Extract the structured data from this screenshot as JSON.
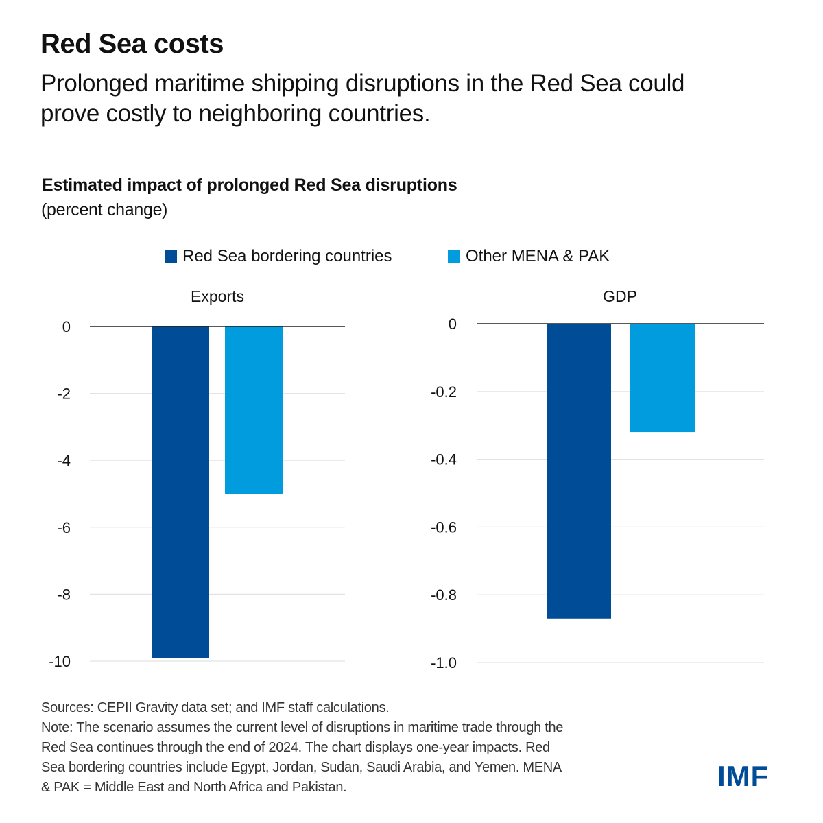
{
  "header": {
    "title": "Red Sea costs",
    "subtitle_line1": "Prolonged maritime shipping disruptions in the Red Sea could",
    "subtitle_line2": "prove costly to neighboring countries."
  },
  "colors": {
    "series_dark": "#004c97",
    "series_light": "#009cde",
    "gridline": "#e3e3e3",
    "zero_line": "#222222"
  },
  "chart_data": [
    {
      "type": "bar",
      "title": "Estimated impact of prolonged Red Sea disruptions",
      "ylabel": "(percent change)",
      "panel": "Exports",
      "categories": [
        "Exports"
      ],
      "series": [
        {
          "name": "Red Sea bordering countries",
          "values": [
            -9.9
          ]
        },
        {
          "name": "Other MENA & PAK",
          "values": [
            -5.0
          ]
        }
      ],
      "ylim": [
        -10,
        0
      ],
      "yticks": [
        0,
        -2,
        -4,
        -6,
        -8,
        -10
      ],
      "ytick_labels": [
        "0",
        "-2",
        "-4",
        "-6",
        "-8",
        "-10"
      ],
      "grid": true,
      "legend": "top-center"
    },
    {
      "type": "bar",
      "title": "Estimated impact of prolonged Red Sea disruptions",
      "ylabel": "(percent change)",
      "panel": "GDP",
      "categories": [
        "GDP"
      ],
      "series": [
        {
          "name": "Red Sea bordering countries",
          "values": [
            -0.87
          ]
        },
        {
          "name": "Other MENA & PAK",
          "values": [
            -0.32
          ]
        }
      ],
      "ylim": [
        -1.0,
        0
      ],
      "yticks": [
        0,
        -0.2,
        -0.4,
        -0.6,
        -0.8,
        -1.0
      ],
      "ytick_labels": [
        "0",
        "-0.2",
        "-0.4",
        "-0.6",
        "-0.8",
        "-1.0"
      ],
      "grid": true,
      "legend": "top-center"
    }
  ],
  "chart": {
    "title": "Estimated impact of prolonged Red Sea disruptions",
    "unit": "(percent change)",
    "legend": [
      {
        "label": "Red Sea bordering countries"
      },
      {
        "label": "Other MENA & PAK"
      }
    ]
  },
  "footnote": {
    "sources": "Sources: CEPII Gravity data set; and IMF staff calculations.",
    "note_lines": [
      "Note: The scenario assumes the current level of disruptions in maritime trade through the",
      "Red Sea continues through the end of 2024. The chart displays one-year impacts. Red",
      "Sea bordering countries include Egypt, Jordan, Sudan, Saudi Arabia, and Yemen. MENA",
      "& PAK = Middle East and North Africa and Pakistan."
    ]
  },
  "logo": {
    "text": "IMF"
  }
}
